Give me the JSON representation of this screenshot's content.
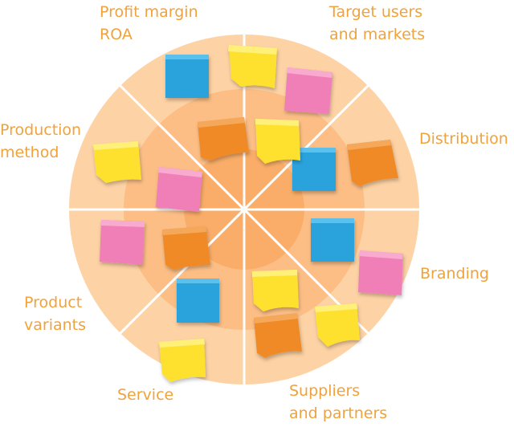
{
  "diagram": {
    "segments": [
      {
        "lines": [
          "Profit margin",
          "ROA"
        ]
      },
      {
        "lines": [
          "Target users",
          "and markets"
        ]
      },
      {
        "lines": [
          "Distribution"
        ]
      },
      {
        "lines": [
          "Branding"
        ]
      },
      {
        "lines": [
          "Suppliers",
          "and partners"
        ]
      },
      {
        "lines": [
          "Service"
        ]
      },
      {
        "lines": [
          "Product",
          "variants"
        ]
      },
      {
        "lines": [
          "Production",
          "method"
        ]
      }
    ],
    "colors": {
      "outer_ring": "#fdd2a4",
      "middle_ring": "#fcbe85",
      "inner_ring": "#f9ad68",
      "divider": "#ffffff",
      "label": "#f0a23c",
      "note_blue": "#2aa3dc",
      "note_yellow": "#fde12e",
      "note_pink": "#f07fb8",
      "note_orange": "#ef8a26"
    }
  }
}
